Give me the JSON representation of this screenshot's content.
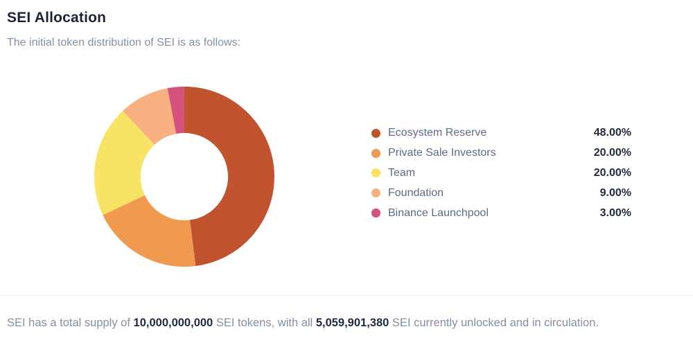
{
  "page": {
    "title": "SEI Allocation",
    "subtitle": "The initial token distribution of SEI is as follows:"
  },
  "chart_data": {
    "type": "pie",
    "title": "SEI Allocation",
    "donut": true,
    "inner_radius_ratio": 0.485,
    "start_angle_deg": 0,
    "direction": "clockwise",
    "legend_position": "right",
    "segments": [
      {
        "label": "Ecosystem Reserve",
        "value": 48.0,
        "display": "48.00%",
        "color": "#c1532f"
      },
      {
        "label": "Private Sale Investors",
        "value": 20.0,
        "display": "20.00%",
        "color": "#ef9a4e"
      },
      {
        "label": "Team",
        "value": 20.0,
        "display": "20.00%",
        "color": "#f9e364"
      },
      {
        "label": "Foundation",
        "value": 9.0,
        "display": "9.00%",
        "color": "#f9b181"
      },
      {
        "label": "Binance Launchpool",
        "value": 3.0,
        "display": "3.00%",
        "color": "#d4527b"
      }
    ]
  },
  "footer": {
    "parts": [
      {
        "text": "SEI has a total supply of ",
        "bold": false
      },
      {
        "text": "10,000,000,000",
        "bold": true
      },
      {
        "text": " SEI tokens, with all ",
        "bold": false
      },
      {
        "text": "5,059,901,380",
        "bold": true
      },
      {
        "text": " SEI currently unlocked and in circulation.",
        "bold": false
      }
    ]
  },
  "colors": {
    "title_text": "#1a2433",
    "muted_text": "#8190a2",
    "legend_label_text": "#5b6b84",
    "value_text": "#1f2a3c",
    "divider": "#ebedf0"
  }
}
